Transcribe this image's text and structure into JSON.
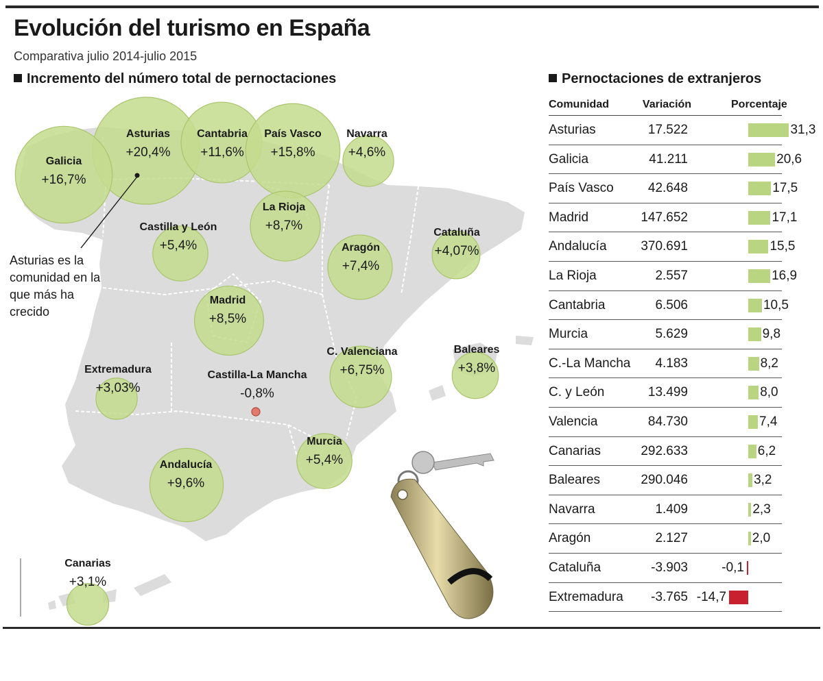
{
  "header": {
    "title": "Evolución del turismo en España",
    "subtitle": "Comparativa julio 2014-julio 2015"
  },
  "map": {
    "heading": "Incremento del número total de pernoctaciones",
    "note": "Asturias es la comunidad en la que más ha crecido",
    "colors": {
      "land": "#dcdcdc",
      "bubble": "#c4dc8e",
      "bubble_stroke": "#a9c56b",
      "negative": "#e07b6b"
    },
    "regions": [
      {
        "name": "Asturias",
        "value": "+20,4%",
        "pct": 20.4
      },
      {
        "name": "Galicia",
        "value": "+16,7%",
        "pct": 16.7
      },
      {
        "name": "Cantabria",
        "value": "+11,6%",
        "pct": 11.6
      },
      {
        "name": "País Vasco",
        "value": "+15,8%",
        "pct": 15.8
      },
      {
        "name": "Navarra",
        "value": "+4,6%",
        "pct": 4.6
      },
      {
        "name": "La Rioja",
        "value": "+8,7%",
        "pct": 8.7
      },
      {
        "name": "Castilla y León",
        "value": "+5,4%",
        "pct": 5.4
      },
      {
        "name": "Aragón",
        "value": "+7,4%",
        "pct": 7.4
      },
      {
        "name": "Cataluña",
        "value": "+4,07%",
        "pct": 4.07
      },
      {
        "name": "Madrid",
        "value": "+8,5%",
        "pct": 8.5
      },
      {
        "name": "C. Valenciana",
        "value": "+6,75%",
        "pct": 6.75
      },
      {
        "name": "Baleares",
        "value": "+3,8%",
        "pct": 3.8
      },
      {
        "name": "Extremadura",
        "value": "+3,03%",
        "pct": 3.03
      },
      {
        "name": "Castilla-La Mancha",
        "value": "-0,8%",
        "pct": -0.8
      },
      {
        "name": "Murcia",
        "value": "+5,4%",
        "pct": 5.4
      },
      {
        "name": "Andalucía",
        "value": "+9,6%",
        "pct": 9.6
      },
      {
        "name": "Canarias",
        "value": "+3,1%",
        "pct": 3.1
      }
    ]
  },
  "table": {
    "heading": "Pernoctaciones de extranjeros",
    "columns": [
      "Comunidad",
      "Variación",
      "Porcentaje"
    ],
    "colors": {
      "positive": "#b9d581",
      "negative": "#c8202e"
    },
    "rows": [
      {
        "name": "Asturias",
        "variacion": "17.522",
        "porcentaje": "31,3",
        "pct": 31.3
      },
      {
        "name": "Galicia",
        "variacion": "41.211",
        "porcentaje": "20,6",
        "pct": 20.6
      },
      {
        "name": "País Vasco",
        "variacion": "42.648",
        "porcentaje": "17,5",
        "pct": 17.5
      },
      {
        "name": "Madrid",
        "variacion": "147.652",
        "porcentaje": "17,1",
        "pct": 17.1
      },
      {
        "name": "Andalucía",
        "variacion": "370.691",
        "porcentaje": "15,5",
        "pct": 15.5
      },
      {
        "name": "La Rioja",
        "variacion": "2.557",
        "porcentaje": "16,9",
        "pct": 16.9
      },
      {
        "name": "Cantabria",
        "variacion": "6.506",
        "porcentaje": "10,5",
        "pct": 10.5
      },
      {
        "name": "Murcia",
        "variacion": "5.629",
        "porcentaje": "9,8",
        "pct": 9.8
      },
      {
        "name": "C.-La Mancha",
        "variacion": "4.183",
        "porcentaje": "8,2",
        "pct": 8.2
      },
      {
        "name": "C. y León",
        "variacion": "13.499",
        "porcentaje": "8,0",
        "pct": 8.0
      },
      {
        "name": "Valencia",
        "variacion": "84.730",
        "porcentaje": "7,4",
        "pct": 7.4
      },
      {
        "name": "Canarias",
        "variacion": "292.633",
        "porcentaje": "6,2",
        "pct": 6.2
      },
      {
        "name": "Baleares",
        "variacion": "290.046",
        "porcentaje": "3,2",
        "pct": 3.2
      },
      {
        "name": "Navarra",
        "variacion": "1.409",
        "porcentaje": "2,3",
        "pct": 2.3
      },
      {
        "name": "Aragón",
        "variacion": "2.127",
        "porcentaje": "2,0",
        "pct": 2.0
      },
      {
        "name": "Cataluña",
        "variacion": "-3.903",
        "porcentaje": "-0,1",
        "pct": -0.1
      },
      {
        "name": "Extremadura",
        "variacion": "-3.765",
        "porcentaje": "-14,7",
        "pct": -14.7
      }
    ]
  }
}
